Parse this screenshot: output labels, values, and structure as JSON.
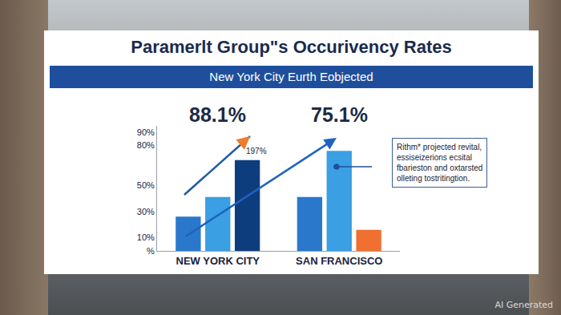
{
  "chart_data": {
    "type": "bar",
    "title": "Paramerlt Group\"s Occurivency Rates",
    "subtitle": "New York City Eurth Eobjected",
    "categories": [
      "NEW YORK CITY",
      "SAN FRANCISCO"
    ],
    "series": [
      {
        "color": "#2a78cc",
        "values": [
          26,
          41
        ]
      },
      {
        "color": "#3a9fe3",
        "values": [
          41,
          76
        ]
      },
      {
        "colors": [
          "#0e3d7e",
          "#f0702f"
        ],
        "values": [
          69,
          16
        ]
      }
    ],
    "ylim": [
      0,
      95
    ],
    "yticks": [
      {
        "value": 0,
        "label": "%"
      },
      {
        "value": 10,
        "label": "10%"
      },
      {
        "value": 30,
        "label": "30%"
      },
      {
        "value": 50,
        "label": "50%"
      },
      {
        "value": 80,
        "label": "80%"
      },
      {
        "value": 90,
        "label": "90%"
      }
    ],
    "grid": false,
    "annotations": [
      {
        "text": "88.1%",
        "category": "NEW YORK CITY"
      },
      {
        "text": "75.1%",
        "category": "SAN FRANCISCO"
      },
      {
        "text": "197%"
      },
      {
        "text": "Rithm* projected revital,\nessiseizerions ecsital\nfbarieston and oxtarsted\nolleting tostritingtion."
      }
    ],
    "watermark": "AI Generated"
  }
}
